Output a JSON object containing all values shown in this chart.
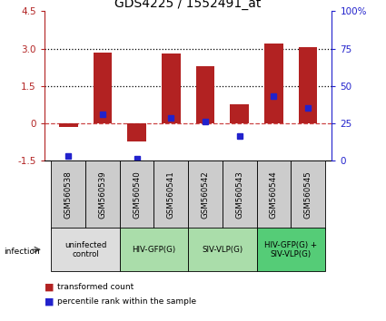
{
  "title": "GDS4225 / 1552491_at",
  "samples": [
    "GSM560538",
    "GSM560539",
    "GSM560540",
    "GSM560541",
    "GSM560542",
    "GSM560543",
    "GSM560544",
    "GSM560545"
  ],
  "bar_values": [
    -0.15,
    2.85,
    -0.75,
    2.8,
    2.3,
    0.75,
    3.2,
    3.05
  ],
  "percentile_values": [
    -1.32,
    0.35,
    -1.42,
    0.2,
    0.05,
    -0.5,
    1.1,
    0.6
  ],
  "ylim": [
    -1.5,
    4.5
  ],
  "yticks_left": [
    -1.5,
    0.0,
    1.5,
    3.0,
    4.5
  ],
  "yticks_right": [
    0,
    25,
    50,
    75,
    100
  ],
  "dotted_lines": [
    1.5,
    3.0
  ],
  "dashed_line": 0.0,
  "bar_color": "#b22222",
  "blue_color": "#2222cc",
  "zero_line_color": "#cc4444",
  "groups": [
    {
      "label": "uninfected\ncontrol",
      "start": 0,
      "end": 2,
      "color": "#dddddd"
    },
    {
      "label": "HIV-GFP(G)",
      "start": 2,
      "end": 4,
      "color": "#aaddaa"
    },
    {
      "label": "SIV-VLP(G)",
      "start": 4,
      "end": 6,
      "color": "#aaddaa"
    },
    {
      "label": "HIV-GFP(G) +\nSIV-VLP(G)",
      "start": 6,
      "end": 8,
      "color": "#55cc77"
    }
  ],
  "infection_label": "infection",
  "legend_red": "transformed count",
  "legend_blue": "percentile rank within the sample",
  "title_fontsize": 10,
  "tick_fontsize": 7.5,
  "bar_width": 0.55
}
